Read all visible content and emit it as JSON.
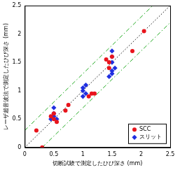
{
  "chart_data": {
    "type": "scatter",
    "x_label": "切断試験で測定したひび深さ (mm)",
    "y_label": "レーザ超音波法で測定したひび深さ (mm)",
    "xlim": [
      0,
      2.5
    ],
    "xticks": [
      0,
      0.5,
      1,
      1.5,
      2,
      2.5
    ],
    "ylim": [
      0,
      2.5
    ],
    "yticks": [
      0,
      0.5,
      1,
      1.5,
      2,
      2.5
    ],
    "grid": false,
    "legend": "lower right",
    "series": [
      {
        "name": "SCC",
        "color": "#e8141c",
        "marker": "circle",
        "x": [
          0.2,
          0.3,
          0.45,
          0.5,
          0.55,
          0.5,
          0.7,
          0.75,
          1.1,
          1.15,
          1.2,
          1.4,
          1.45,
          1.45,
          1.5,
          1.85,
          2.05
        ],
        "values": [
          0.3,
          0.0,
          0.55,
          0.5,
          0.45,
          0.6,
          0.65,
          0.75,
          0.9,
          0.95,
          0.95,
          1.55,
          1.5,
          1.4,
          1.6,
          1.7,
          2.05
        ]
      },
      {
        "name": "スリット",
        "color": "#1f2fe0",
        "marker": "diamond",
        "x": [
          0.45,
          0.5,
          0.5,
          0.5,
          0.55,
          1.0,
          1.0,
          1.0,
          1.05,
          1.05,
          1.5,
          1.5,
          1.5,
          1.55,
          1.5,
          1.5,
          1.45
        ],
        "values": [
          0.5,
          0.6,
          0.7,
          0.55,
          0.5,
          0.9,
          1.0,
          1.05,
          1.1,
          0.95,
          1.7,
          1.6,
          1.5,
          1.4,
          1.35,
          1.3,
          1.25
        ]
      },
      {
        "type": "line",
        "color": "#000000",
        "line_style": "dotted",
        "x": [
          0,
          2.5
        ],
        "values": [
          0,
          2.5
        ]
      },
      {
        "type": "line",
        "color": "#22aa22",
        "line_style": "dashdot",
        "x": [
          0,
          2.2
        ],
        "values": [
          0.3,
          2.5
        ]
      },
      {
        "type": "line",
        "color": "#22aa22",
        "line_style": "dashdot",
        "x": [
          0.3,
          2.5
        ],
        "values": [
          0,
          2.2
        ]
      }
    ]
  }
}
